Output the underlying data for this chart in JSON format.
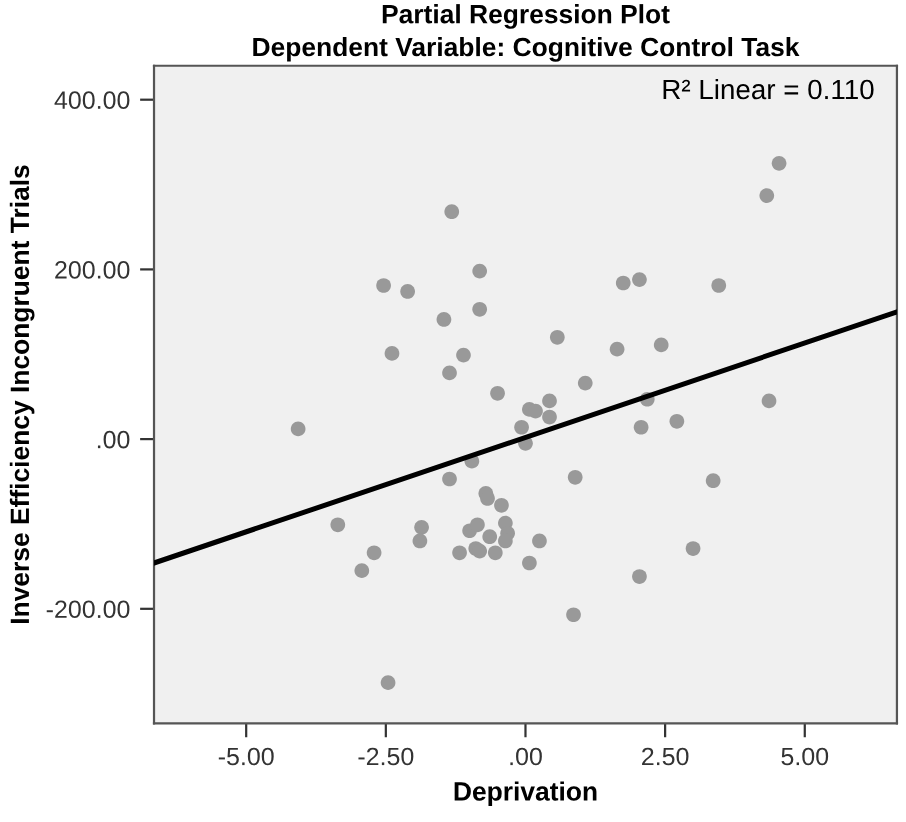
{
  "chart_data": {
    "type": "scatter",
    "title": "Partial Regression Plot",
    "subtitle": "Dependent Variable: Cognitive Control Task",
    "xlabel": "Deprivation",
    "ylabel": "Inverse Efficiency Incongruent Trials",
    "annotations": [
      "R² Linear = 0.110"
    ],
    "xlim": [
      -6.65,
      6.65
    ],
    "ylim": [
      -335,
      440
    ],
    "xticks": [
      {
        "value": -5,
        "label": "-5.00"
      },
      {
        "value": -2.5,
        "label": "-2.50"
      },
      {
        "value": 0,
        "label": ".00"
      },
      {
        "value": 2.5,
        "label": "2.50"
      },
      {
        "value": 5,
        "label": "5.00"
      }
    ],
    "yticks": [
      {
        "value": -200,
        "label": "-200.00"
      },
      {
        "value": 0,
        "label": ".00"
      },
      {
        "value": 200,
        "label": "200.00"
      },
      {
        "value": 400,
        "label": "400.00"
      }
    ],
    "grid": false,
    "marker": "circle",
    "series": [
      {
        "color": "#999999",
        "x": [
          -4.07,
          -1.32,
          -0.82,
          -2.54,
          -2.11,
          -0.82,
          -1.46,
          -2.39,
          -1.11,
          -1.36,
          -0.5,
          0.07,
          0.18,
          -0.07,
          4.54,
          4.32,
          1.75,
          2.04,
          3.46,
          0.57,
          1.64,
          2.43,
          1.07,
          0.43,
          0.43,
          2.18,
          2.07,
          2.71,
          4.36,
          0.0,
          0.89,
          3.36,
          0.25,
          0.07,
          3.0,
          2.04,
          0.86,
          -1.36,
          -0.96,
          -0.71,
          -0.68,
          -0.43,
          -3.36,
          -1.86,
          -1.89,
          -2.71,
          -2.93,
          -1.0,
          -0.86,
          -0.64,
          -0.36,
          -0.32,
          -0.36,
          -1.18,
          -0.89,
          -0.82,
          -0.54,
          -2.46
        ],
        "values": [
          12,
          268,
          198,
          181,
          174,
          153,
          141,
          101,
          99,
          78,
          54,
          35,
          33,
          14,
          325,
          287,
          184,
          188,
          181,
          120,
          106,
          111,
          66,
          45,
          26,
          47,
          14,
          21,
          45,
          -5,
          -45,
          -49,
          -120,
          -146,
          -129,
          -162,
          -207,
          -47,
          -26,
          -64,
          -70,
          -78,
          -101,
          -104,
          -120,
          -134,
          -155,
          -108,
          -101,
          -115,
          -99,
          -111,
          -120,
          -134,
          -129,
          -132,
          -134,
          -287
        ]
      },
      {
        "type": "line",
        "color": "#000000",
        "marker": "none",
        "x": [
          -6.65,
          6.65
        ],
        "values": [
          -146,
          150
        ]
      }
    ]
  }
}
